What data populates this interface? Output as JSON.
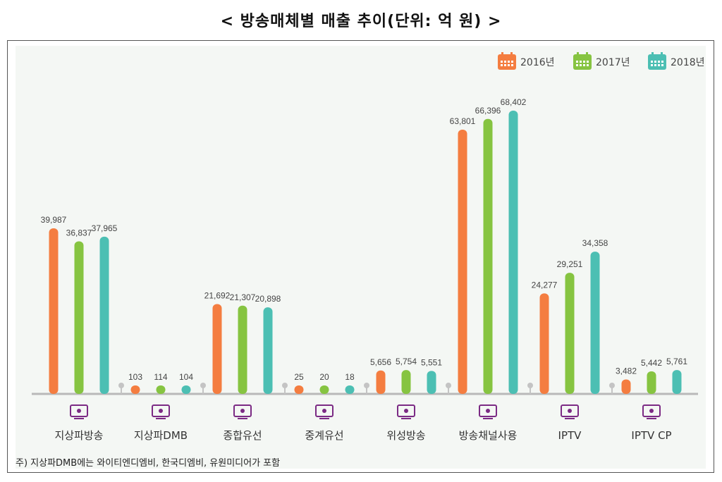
{
  "title": "< 방송매체별 매출 추이(단위: 억 원) >",
  "note": "주) 지상파DMB에는 와이티엔디엠비, 한국디엠비, 유원미디어가 포함",
  "chart_data": {
    "type": "bar",
    "title": "< 방송매체별 매출 추이(단위: 억 원) >",
    "unit": "억 원",
    "categories": [
      "지상파방송",
      "지상파DMB",
      "종합유선",
      "중계유선",
      "위성방송",
      "방송채널사용",
      "IPTV",
      "IPTV CP"
    ],
    "icons": [
      "tv-icon",
      "dmb-icon",
      "antenna-tower-icon",
      "relay-icon",
      "satellite-icon",
      "channel-tv-icon",
      "iptv-icon",
      "iptv-cp-icon"
    ],
    "series": [
      {
        "name": "2016년",
        "color": "#f47d40",
        "values": [
          39987,
          103,
          21692,
          25,
          5656,
          63801,
          24277,
          3482
        ],
        "labels": [
          "39,987",
          "103",
          "21,692",
          "25",
          "5,656",
          "63,801",
          "24,277",
          "3,482"
        ]
      },
      {
        "name": "2017년",
        "color": "#86c441",
        "values": [
          36837,
          114,
          21307,
          20,
          5754,
          66396,
          29251,
          5442
        ],
        "labels": [
          "36,837",
          "114",
          "21,307",
          "20",
          "5,754",
          "66,396",
          "29,251",
          "5,442"
        ]
      },
      {
        "name": "2018년",
        "color": "#4cbfb3",
        "values": [
          37965,
          104,
          20898,
          18,
          5551,
          68402,
          34358,
          5761
        ],
        "labels": [
          "37,965",
          "104",
          "20,898",
          "18",
          "5,551",
          "68,402",
          "34,358",
          "5,761"
        ]
      }
    ],
    "legend": "top-right",
    "grid": false,
    "ylim": [
      0,
      68402
    ]
  }
}
